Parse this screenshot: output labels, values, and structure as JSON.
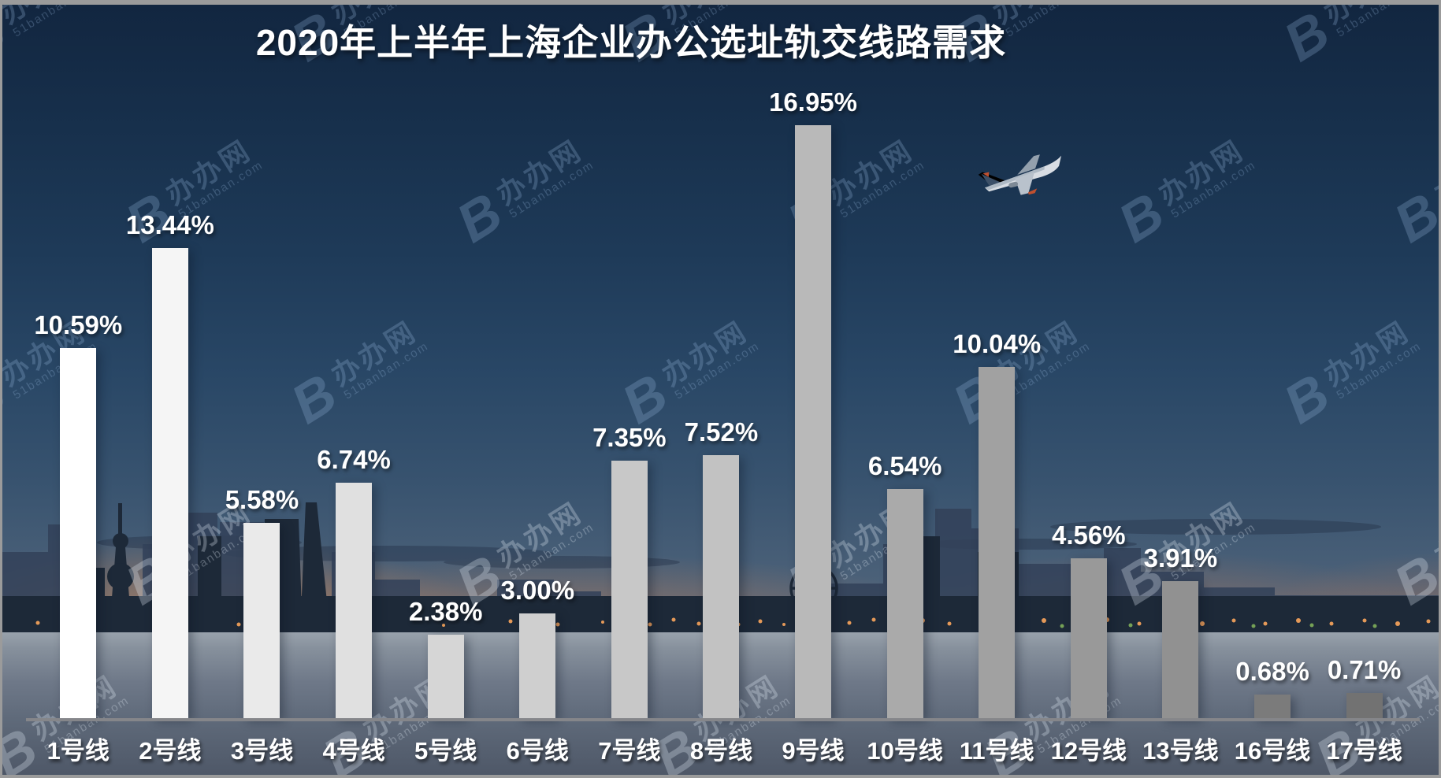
{
  "title": "2020年上半年上海企业办公选址轨交线路需求",
  "watermark": {
    "logo_text": "B",
    "name": "办办网",
    "domain": "51banban.com"
  },
  "chart_data": {
    "type": "bar",
    "title": "2020年上半年上海企业办公选址轨交线路需求",
    "categories": [
      "1号线",
      "2号线",
      "3号线",
      "4号线",
      "5号线",
      "6号线",
      "7号线",
      "8号线",
      "9号线",
      "10号线",
      "11号线",
      "12号线",
      "13号线",
      "16号线",
      "17号线"
    ],
    "values": [
      10.59,
      13.44,
      5.58,
      6.74,
      2.38,
      3.0,
      7.35,
      7.52,
      16.95,
      6.54,
      10.04,
      4.56,
      3.91,
      0.68,
      0.71
    ],
    "labels": [
      "10.59%",
      "13.44%",
      "5.58%",
      "6.74%",
      "2.38%",
      "3.00%",
      "7.35%",
      "7.52%",
      "16.95%",
      "6.54%",
      "10.04%",
      "4.56%",
      "3.91%",
      "0.68%",
      "0.71%"
    ],
    "xlabel": "",
    "ylabel": "",
    "ylim": [
      0,
      18
    ],
    "grid": false,
    "legend": "none",
    "bar_colors": [
      "#ffffff",
      "#f5f5f5",
      "#eaeaea",
      "#e0e0e0",
      "#d6d6d6",
      "#cfcfcf",
      "#c8c8c8",
      "#c2c2c2",
      "#b9b9b9",
      "#aaaaaa",
      "#a1a1a1",
      "#999999",
      "#919191",
      "#7b7b7b",
      "#727272"
    ],
    "axis_color": "#85868a",
    "label_color": "#ffffff"
  }
}
